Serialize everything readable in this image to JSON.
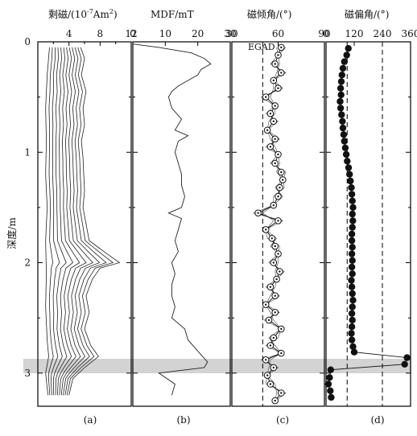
{
  "chart_data": [
    {
      "panel": "(a)",
      "type": "line",
      "title": "剩磁/(10⁻⁷Am²)",
      "title_display": "剩磁/(10",
      "title_sup": "-7",
      "title_tail": "Am",
      "title_sup2": "2",
      "title_end": ")",
      "xlim": [
        0,
        12
      ],
      "xticks": [
        "4",
        "8",
        "12"
      ],
      "ylabel": "深度/m",
      "ylim": [
        0,
        3.3
      ],
      "yticks": [
        "0",
        "1",
        "2",
        "3"
      ],
      "series_count": 12,
      "outer_curve": {
        "depth": [
          0.05,
          0.15,
          0.3,
          0.45,
          0.6,
          0.75,
          0.9,
          1.05,
          1.2,
          1.35,
          1.5,
          1.65,
          1.8,
          1.9,
          2.0,
          2.05,
          2.15,
          2.3,
          2.45,
          2.6,
          2.75,
          2.85,
          2.95,
          3.05,
          3.2
        ],
        "value": [
          5.5,
          6.0,
          5.6,
          6.2,
          5.8,
          6.0,
          5.6,
          5.8,
          5.9,
          6.0,
          5.8,
          6.2,
          6.6,
          8.5,
          10.5,
          8.0,
          7.0,
          6.2,
          6.6,
          6.0,
          6.8,
          7.8,
          6.0,
          4.5,
          4.0
        ]
      },
      "inner_curve": {
        "depth": [
          0.05,
          0.3,
          0.6,
          0.9,
          1.2,
          1.5,
          1.8,
          2.1,
          2.4,
          2.7,
          2.85,
          3.0,
          3.2
        ],
        "value": [
          1.5,
          1.2,
          1.0,
          1.1,
          1.0,
          1.2,
          1.0,
          1.1,
          1.0,
          1.2,
          1.4,
          1.0,
          1.3
        ]
      },
      "xlabel": "(a)"
    },
    {
      "panel": "(b)",
      "type": "line",
      "title": "MDF/mT",
      "xlim": [
        0,
        30
      ],
      "xticks": [
        "0",
        "10",
        "20",
        "30"
      ],
      "ylim": [
        0,
        3.3
      ],
      "depth": [
        0.02,
        0.05,
        0.1,
        0.15,
        0.2,
        0.25,
        0.3,
        0.35,
        0.4,
        0.45,
        0.5,
        0.6,
        0.7,
        0.8,
        0.85,
        0.9,
        1.0,
        1.1,
        1.2,
        1.3,
        1.4,
        1.5,
        1.55,
        1.6,
        1.7,
        1.8,
        1.9,
        2.0,
        2.1,
        2.2,
        2.3,
        2.4,
        2.5,
        2.6,
        2.7,
        2.8,
        2.9,
        2.95,
        3.0,
        3.1,
        3.2
      ],
      "mdf": [
        0,
        8,
        18,
        22,
        24,
        21,
        20,
        17,
        14,
        12,
        11,
        12,
        15,
        13,
        17,
        14,
        13,
        14,
        15,
        15,
        16,
        15,
        11,
        15,
        14,
        13,
        14,
        12,
        13,
        12,
        12,
        13,
        12,
        16,
        17,
        20,
        23,
        22,
        8,
        13,
        12
      ],
      "xlabel": "(b)"
    },
    {
      "panel": "(c)",
      "type": "line",
      "title": "磁倾角/(°)",
      "xlim": [
        30,
        90
      ],
      "xticks": [
        "30",
        "60",
        "90"
      ],
      "ylim": [
        0,
        3.3
      ],
      "reference_line": {
        "label": "EGAD",
        "value": 50
      },
      "depth": [
        0.05,
        0.12,
        0.2,
        0.28,
        0.35,
        0.42,
        0.5,
        0.58,
        0.65,
        0.72,
        0.8,
        0.88,
        0.95,
        1.02,
        1.1,
        1.18,
        1.25,
        1.32,
        1.4,
        1.48,
        1.55,
        1.62,
        1.7,
        1.78,
        1.85,
        1.92,
        2.0,
        2.08,
        2.15,
        2.22,
        2.3,
        2.38,
        2.45,
        2.52,
        2.6,
        2.68,
        2.75,
        2.82,
        2.88,
        2.95,
        3.02,
        3.1,
        3.18,
        3.25
      ],
      "inclination": [
        62,
        60,
        58,
        62,
        57,
        60,
        52,
        58,
        55,
        57,
        53,
        58,
        55,
        60,
        58,
        62,
        63,
        61,
        60,
        57,
        47,
        60,
        52,
        56,
        58,
        60,
        57,
        61,
        59,
        55,
        58,
        52,
        58,
        54,
        62,
        57,
        55,
        62,
        52,
        57,
        53,
        55,
        62,
        58
      ],
      "xlabel": "(c)"
    },
    {
      "panel": "(d)",
      "type": "scatter",
      "title": "磁偏角/(°)",
      "xlim": [
        0,
        360
      ],
      "xticks": [
        "0",
        "120",
        "240",
        "360"
      ],
      "ylim": [
        0,
        3.3
      ],
      "reference_lines": [
        90,
        240
      ],
      "depth": [
        0.06,
        0.12,
        0.18,
        0.24,
        0.3,
        0.36,
        0.42,
        0.48,
        0.54,
        0.6,
        0.66,
        0.72,
        0.78,
        0.84,
        0.9,
        0.96,
        1.02,
        1.08,
        1.14,
        1.2,
        1.26,
        1.32,
        1.38,
        1.44,
        1.5,
        1.56,
        1.62,
        1.68,
        1.74,
        1.8,
        1.86,
        1.92,
        1.98,
        2.04,
        2.1,
        2.16,
        2.22,
        2.28,
        2.34,
        2.4,
        2.46,
        2.52,
        2.58,
        2.64,
        2.7,
        2.76,
        2.81,
        2.86,
        2.92,
        2.97,
        3.04,
        3.1,
        3.16,
        3.22
      ],
      "declination": [
        95,
        88,
        78,
        72,
        68,
        65,
        62,
        64,
        60,
        62,
        66,
        70,
        72,
        75,
        78,
        82,
        86,
        90,
        96,
        100,
        104,
        108,
        110,
        112,
        115,
        112,
        114,
        112,
        110,
        110,
        112,
        110,
        112,
        110,
        112,
        108,
        110,
        112,
        115,
        112,
        110,
        112,
        110,
        108,
        110,
        115,
        120,
        345,
        335,
        20,
        15,
        10,
        18,
        22
      ],
      "xlabel": "(d)"
    }
  ]
}
